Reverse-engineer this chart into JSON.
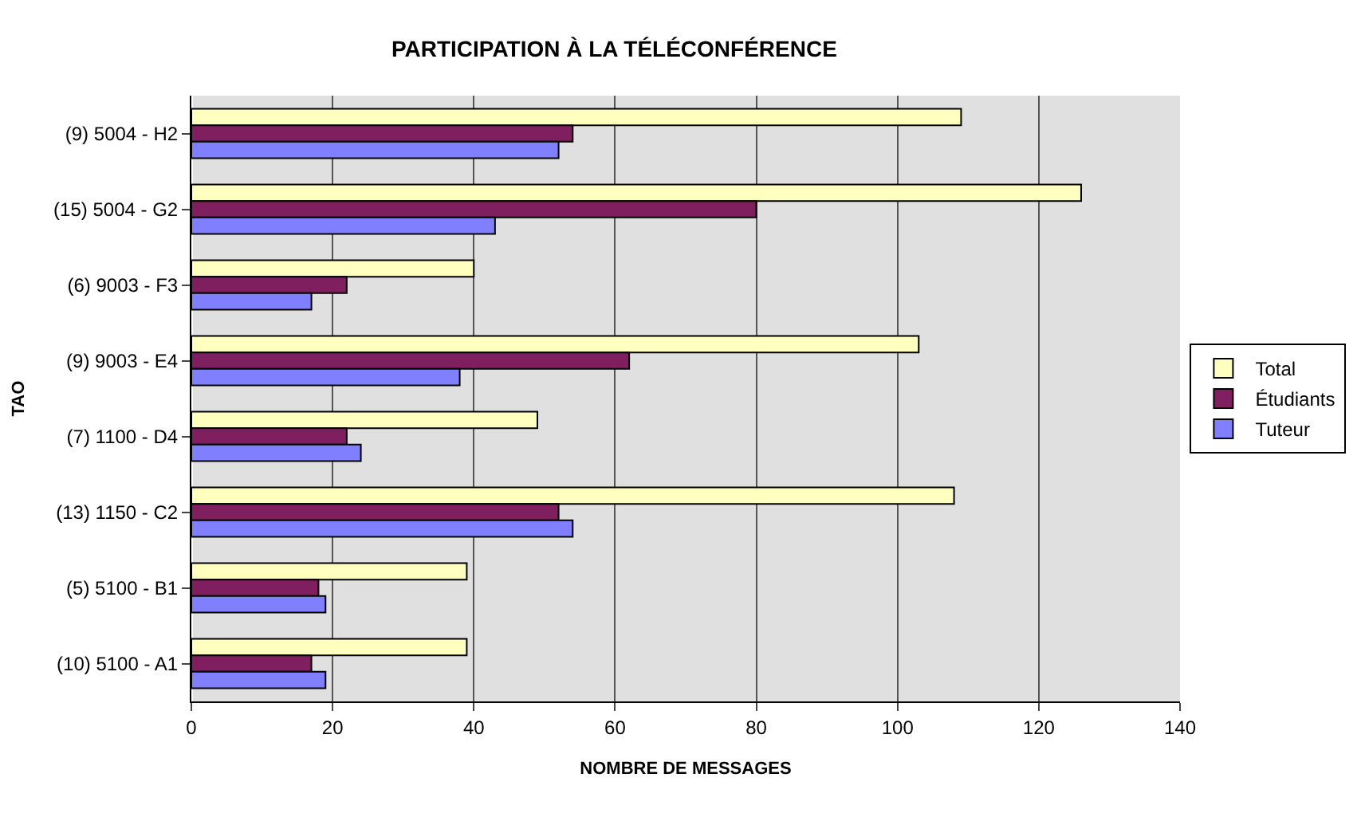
{
  "chart_data": {
    "type": "bar",
    "orientation": "horizontal",
    "title": "PARTICIPATION À LA TÉLÉCONFÉRENCE",
    "xlabel": "NOMBRE DE MESSAGES",
    "ylabel": "TAO",
    "categories": [
      "(9) 5004 - H2",
      "(15) 5004 - G2",
      "(6) 9003 - F3",
      "(9) 9003 - E4",
      "(7) 1100 - D4",
      "(13) 1150 - C2",
      "(5) 5100 - B1",
      "(10) 5100 - A1"
    ],
    "series": [
      {
        "name": "Total",
        "color": "#ffffc0",
        "values": [
          109,
          126,
          40,
          103,
          49,
          108,
          39,
          39
        ]
      },
      {
        "name": "Étudiants",
        "color": "#801f60",
        "values": [
          54,
          80,
          22,
          62,
          22,
          52,
          18,
          17
        ]
      },
      {
        "name": "Tuteur",
        "color": "#8080ff",
        "values": [
          52,
          43,
          17,
          38,
          24,
          54,
          19,
          19
        ]
      }
    ],
    "xlim": [
      0,
      140
    ],
    "xticks": [
      0,
      20,
      40,
      60,
      80,
      100,
      120,
      140
    ],
    "grid": "x",
    "legend": "right"
  }
}
